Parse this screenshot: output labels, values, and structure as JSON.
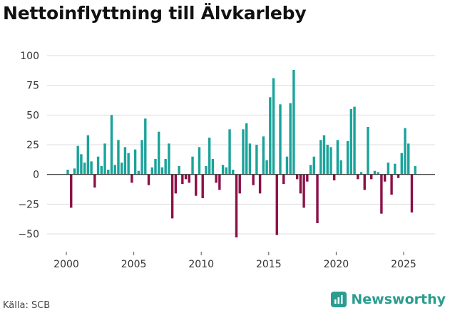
{
  "title": "Nettoinflyttning till Älvkarleby",
  "source": "Källa: SCB",
  "brand": "Newsworthy",
  "colors": {
    "positive": "#1aa39a",
    "negative": "#8c1048",
    "grid": "#dddddd",
    "zero": "#333333"
  },
  "chart_data": {
    "type": "bar",
    "title": "Nettoinflyttning till Älvkarleby",
    "xlabel": "",
    "ylabel": "",
    "frequency": "quarterly",
    "start": "2000Q1",
    "ylim": [
      -55,
      105
    ],
    "yticks": [
      -50,
      -25,
      0,
      25,
      50,
      75,
      100
    ],
    "ytick_labels": [
      "−50",
      "−25",
      "0",
      "25",
      "50",
      "75",
      "100"
    ],
    "xticks": [
      2000,
      2005,
      2010,
      2015,
      2020,
      2025
    ],
    "xtick_labels": [
      "2000",
      "2005",
      "2010",
      "2015",
      "2020",
      "2025"
    ],
    "values": [
      4,
      -28,
      5,
      24,
      17,
      10,
      33,
      11,
      -11,
      15,
      7,
      26,
      4,
      50,
      8,
      29,
      10,
      23,
      18,
      -7,
      21,
      3,
      29,
      47,
      -9,
      6,
      13,
      36,
      6,
      13,
      26,
      -37,
      -16,
      7,
      -8,
      -4,
      -7,
      15,
      -18,
      23,
      -20,
      7,
      31,
      13,
      -7,
      -13,
      8,
      6,
      38,
      4,
      -53,
      -16,
      38,
      43,
      26,
      -9,
      25,
      -16,
      32,
      12,
      65,
      81,
      -51,
      59,
      -8,
      15,
      60,
      88,
      -4,
      -16,
      -28,
      -6,
      8,
      15,
      -41,
      29,
      33,
      25,
      23,
      -5,
      29,
      12,
      0,
      28,
      55,
      57,
      -4,
      2,
      -13,
      40,
      -4,
      3,
      2,
      -33,
      -6,
      10,
      -17,
      9,
      -3,
      18,
      39,
      26,
      -32,
      7
    ]
  }
}
